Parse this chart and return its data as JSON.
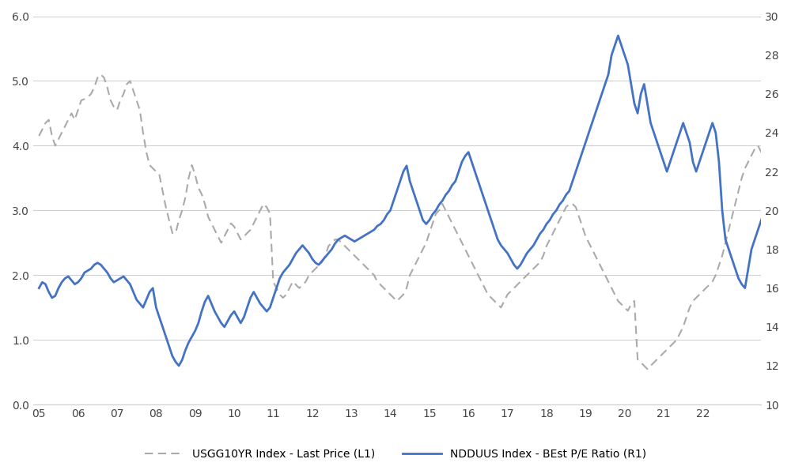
{
  "left_ylim": [
    0.0,
    6.0
  ],
  "right_ylim": [
    10,
    30
  ],
  "left_yticks": [
    0.0,
    1.0,
    2.0,
    3.0,
    4.0,
    5.0,
    6.0
  ],
  "right_yticks": [
    10,
    12,
    14,
    16,
    18,
    20,
    22,
    24,
    26,
    28,
    30
  ],
  "xtick_labels": [
    "05",
    "06",
    "07",
    "08",
    "09",
    "10",
    "11",
    "12",
    "13",
    "14",
    "15",
    "16",
    "17",
    "18",
    "19",
    "20",
    "21",
    "22",
    ""
  ],
  "legend1_label": "USGG10YR Index - Last Price (L1)",
  "legend2_label": "NDDUUS Index - BEst P/E Ratio (R1)",
  "dashed_color": "#aaaaaa",
  "solid_color": "#4472c4",
  "background_color": "#ffffff",
  "grid_color": "#d0d0d0",
  "usgg10yr": [
    4.15,
    4.25,
    4.35,
    4.4,
    4.15,
    4.0,
    4.1,
    4.2,
    4.3,
    4.4,
    4.5,
    4.4,
    4.55,
    4.7,
    4.72,
    4.75,
    4.8,
    4.9,
    5.05,
    5.1,
    5.05,
    4.9,
    4.7,
    4.6,
    4.55,
    4.7,
    4.8,
    4.95,
    5.0,
    4.85,
    4.7,
    4.55,
    4.2,
    3.9,
    3.7,
    3.65,
    3.6,
    3.55,
    3.3,
    3.05,
    2.85,
    2.65,
    2.65,
    2.85,
    3.0,
    3.2,
    3.5,
    3.7,
    3.55,
    3.35,
    3.25,
    3.1,
    2.9,
    2.8,
    2.7,
    2.6,
    2.5,
    2.6,
    2.7,
    2.8,
    2.75,
    2.65,
    2.55,
    2.6,
    2.65,
    2.7,
    2.8,
    2.9,
    3.0,
    3.1,
    3.05,
    2.95,
    1.9,
    1.8,
    1.7,
    1.65,
    1.7,
    1.8,
    1.9,
    1.85,
    1.8,
    1.85,
    1.9,
    2.0,
    2.05,
    2.1,
    2.15,
    2.2,
    2.3,
    2.45,
    2.5,
    2.55,
    2.55,
    2.5,
    2.45,
    2.4,
    2.35,
    2.3,
    2.25,
    2.2,
    2.15,
    2.1,
    2.05,
    2.0,
    1.9,
    1.85,
    1.8,
    1.75,
    1.7,
    1.65,
    1.6,
    1.65,
    1.7,
    1.8,
    2.0,
    2.1,
    2.2,
    2.3,
    2.4,
    2.5,
    2.65,
    2.8,
    2.95,
    3.0,
    3.1,
    3.0,
    2.9,
    2.8,
    2.7,
    2.6,
    2.5,
    2.4,
    2.3,
    2.2,
    2.1,
    2.0,
    1.9,
    1.8,
    1.7,
    1.65,
    1.6,
    1.55,
    1.5,
    1.6,
    1.7,
    1.75,
    1.8,
    1.85,
    1.9,
    1.95,
    2.0,
    2.05,
    2.1,
    2.15,
    2.2,
    2.3,
    2.45,
    2.55,
    2.65,
    2.75,
    2.85,
    2.95,
    3.05,
    3.1,
    3.1,
    3.05,
    2.9,
    2.75,
    2.6,
    2.5,
    2.4,
    2.3,
    2.2,
    2.1,
    2.0,
    1.9,
    1.8,
    1.7,
    1.6,
    1.55,
    1.5,
    1.45,
    1.55,
    1.6,
    0.7,
    0.65,
    0.6,
    0.55,
    0.6,
    0.65,
    0.7,
    0.75,
    0.8,
    0.85,
    0.9,
    0.95,
    1.0,
    1.1,
    1.2,
    1.35,
    1.5,
    1.6,
    1.65,
    1.7,
    1.75,
    1.8,
    1.85,
    1.9,
    2.0,
    2.15,
    2.3,
    2.5,
    2.7,
    2.9,
    3.1,
    3.3,
    3.5,
    3.65,
    3.75,
    3.85,
    3.95,
    4.0,
    3.9,
    3.85,
    3.9,
    4.0,
    3.9,
    3.8
  ],
  "ndduus": [
    16.0,
    16.3,
    16.2,
    15.8,
    15.5,
    15.6,
    16.0,
    16.3,
    16.5,
    16.6,
    16.4,
    16.2,
    16.3,
    16.5,
    16.8,
    16.9,
    17.0,
    17.2,
    17.3,
    17.2,
    17.0,
    16.8,
    16.5,
    16.3,
    16.4,
    16.5,
    16.6,
    16.4,
    16.2,
    15.8,
    15.4,
    15.2,
    15.0,
    15.4,
    15.8,
    16.0,
    15.0,
    14.5,
    14.0,
    13.5,
    13.0,
    12.5,
    12.2,
    12.0,
    12.3,
    12.8,
    13.2,
    13.5,
    13.8,
    14.2,
    14.8,
    15.3,
    15.6,
    15.2,
    14.8,
    14.5,
    14.2,
    14.0,
    14.3,
    14.6,
    14.8,
    14.5,
    14.2,
    14.5,
    15.0,
    15.5,
    15.8,
    15.5,
    15.2,
    15.0,
    14.8,
    15.0,
    15.5,
    16.0,
    16.5,
    16.8,
    17.0,
    17.2,
    17.5,
    17.8,
    18.0,
    18.2,
    18.0,
    17.8,
    17.5,
    17.3,
    17.2,
    17.4,
    17.6,
    17.8,
    18.0,
    18.3,
    18.5,
    18.6,
    18.7,
    18.6,
    18.5,
    18.4,
    18.5,
    18.6,
    18.7,
    18.8,
    18.9,
    19.0,
    19.2,
    19.3,
    19.5,
    19.8,
    20.0,
    20.5,
    21.0,
    21.5,
    22.0,
    22.3,
    21.5,
    21.0,
    20.5,
    20.0,
    19.5,
    19.3,
    19.5,
    19.8,
    20.0,
    20.3,
    20.5,
    20.8,
    21.0,
    21.3,
    21.5,
    22.0,
    22.5,
    22.8,
    23.0,
    22.5,
    22.0,
    21.5,
    21.0,
    20.5,
    20.0,
    19.5,
    19.0,
    18.5,
    18.2,
    18.0,
    17.8,
    17.5,
    17.2,
    17.0,
    17.2,
    17.5,
    17.8,
    18.0,
    18.2,
    18.5,
    18.8,
    19.0,
    19.3,
    19.5,
    19.8,
    20.0,
    20.3,
    20.5,
    20.8,
    21.0,
    21.5,
    22.0,
    22.5,
    23.0,
    23.5,
    24.0,
    24.5,
    25.0,
    25.5,
    26.0,
    26.5,
    27.0,
    28.0,
    28.5,
    29.0,
    28.5,
    28.0,
    27.5,
    26.5,
    25.5,
    25.0,
    26.0,
    26.5,
    25.5,
    24.5,
    24.0,
    23.5,
    23.0,
    22.5,
    22.0,
    22.5,
    23.0,
    23.5,
    24.0,
    24.5,
    24.0,
    23.5,
    22.5,
    22.0,
    22.5,
    23.0,
    23.5,
    24.0,
    24.5,
    24.0,
    22.5,
    20.0,
    18.5,
    18.0,
    17.5,
    17.0,
    16.5,
    16.2,
    16.0,
    17.0,
    18.0,
    18.5,
    19.0,
    19.5,
    20.0,
    20.5,
    21.0,
    21.5,
    21.0
  ]
}
